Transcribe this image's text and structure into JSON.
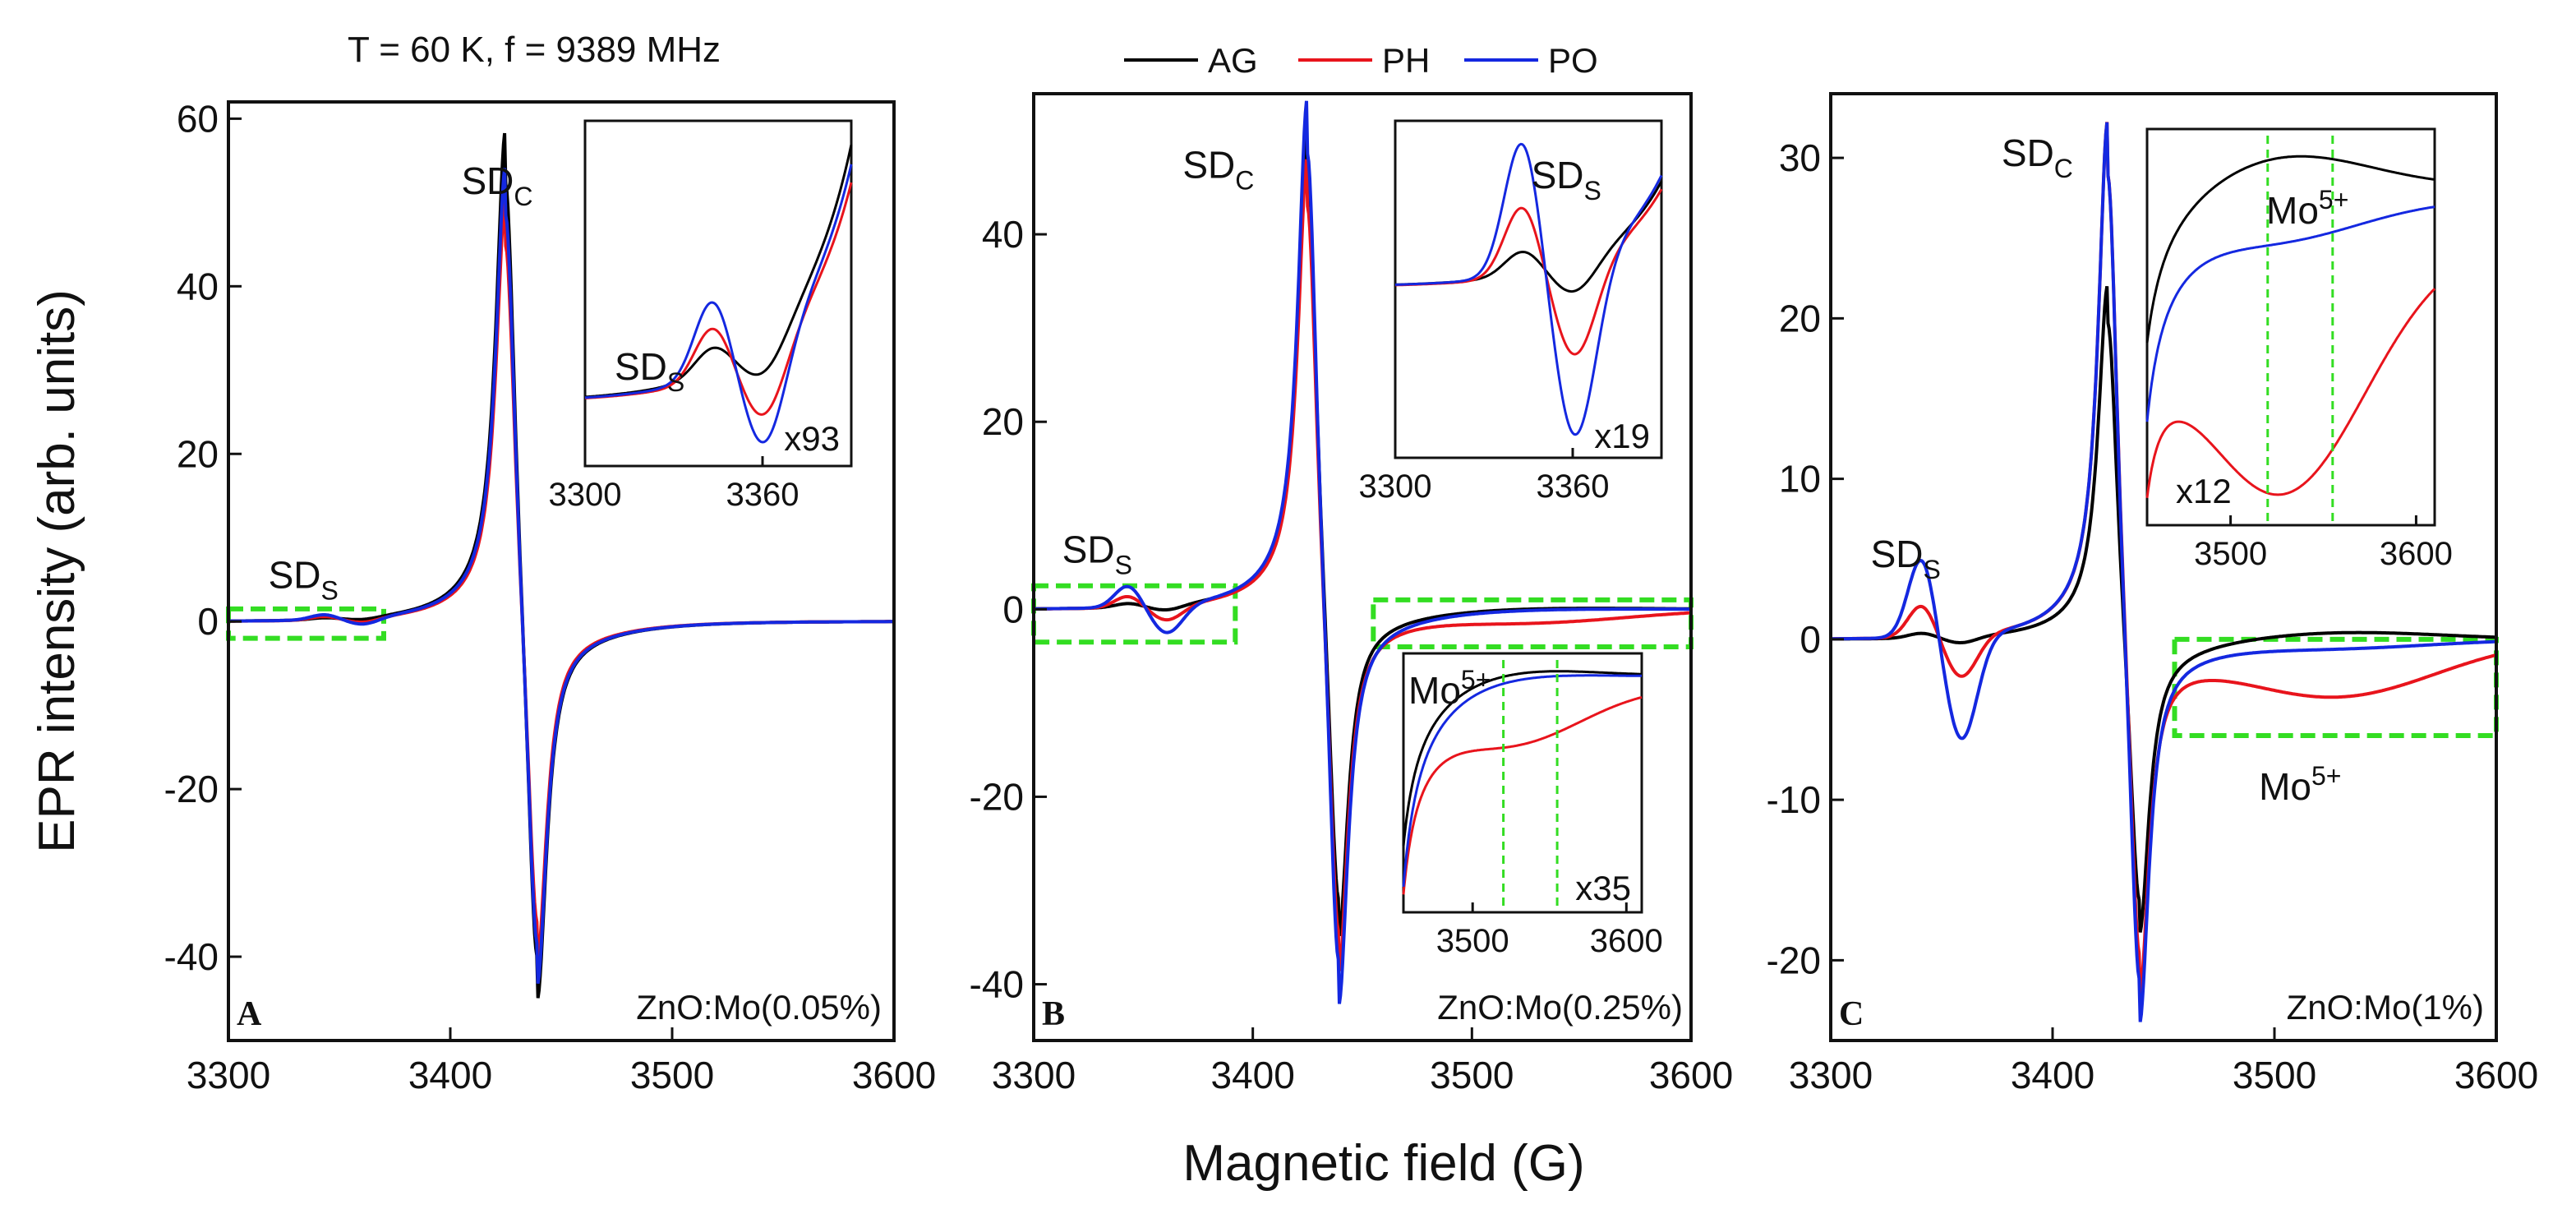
{
  "header": {
    "title": "T = 60 K, f = 9389 MHz"
  },
  "legend": {
    "items": [
      {
        "name": "AG",
        "color": "#000000"
      },
      {
        "name": "PH",
        "color": "#e8141c"
      },
      {
        "name": "PO",
        "color": "#1428e0"
      }
    ]
  },
  "axes": {
    "ylabel": "EPR intensity (arb. units)",
    "xlabel": "Magnetic field (G)"
  },
  "colors": {
    "AG": "#000000",
    "PH": "#e8141c",
    "PO": "#1428e0",
    "highlight": "#33dd22"
  },
  "chart_data": [
    {
      "type": "line",
      "panel": "A",
      "sample": "ZnO:Mo(0.05%)",
      "xlabel": "Magnetic field (G)",
      "ylabel": "EPR intensity (arb. units)",
      "xlim": [
        3300,
        3600
      ],
      "ylim": [
        -50,
        62
      ],
      "xticks": [
        3300,
        3400,
        3500,
        3600
      ],
      "yticks": [
        -40,
        -20,
        0,
        20,
        40,
        60
      ],
      "signal": {
        "center": 3432,
        "hw": 7,
        "SDs_at": 3352
      },
      "series": [
        {
          "name": "AG",
          "pos": 58,
          "neg": -47,
          "sds": 0.2,
          "mo": 0
        },
        {
          "name": "PH",
          "pos": 50,
          "neg": -42,
          "sds": 0.4,
          "mo": 0
        },
        {
          "name": "PO",
          "pos": 54,
          "neg": -45,
          "sds": 0.6,
          "mo": 0
        }
      ],
      "annotations": [
        {
          "text": "SD",
          "sub": "C",
          "x": 3405,
          "y": 51
        },
        {
          "text": "SD",
          "sub": "S",
          "x": 3318,
          "y": 4
        }
      ],
      "highlight_boxes": [
        {
          "x": [
            3300,
            3370
          ],
          "y": [
            -2,
            1.5
          ]
        }
      ],
      "inset": {
        "xlim": [
          3300,
          3390
        ],
        "xticks": [
          3300,
          3360
        ],
        "scale_label": "x93",
        "labels": [
          {
            "text": "SD",
            "sub": "S",
            "x": 3310,
            "y": 0.25
          }
        ]
      }
    },
    {
      "type": "line",
      "panel": "B",
      "sample": "ZnO:Mo(0.25%)",
      "xlabel": "Magnetic field (G)",
      "ylabel": "EPR intensity (arb. units)",
      "xlim": [
        3300,
        3600
      ],
      "ylim": [
        -46,
        55
      ],
      "xticks": [
        3300,
        3400,
        3500,
        3600
      ],
      "yticks": [
        -40,
        -20,
        0,
        20,
        40
      ],
      "signal": {
        "center": 3432,
        "hw": 7,
        "SDs_at": 3352
      },
      "series": [
        {
          "name": "AG",
          "pos": 50,
          "neg": -37,
          "sds": 0.4,
          "mo": 0.2
        },
        {
          "name": "PH",
          "pos": 48,
          "neg": -40,
          "sds": 1.2,
          "mo": -1.3
        },
        {
          "name": "PO",
          "pos": 54,
          "neg": -44,
          "sds": 2.3,
          "mo": 0.1
        }
      ],
      "annotations": [
        {
          "text": "SD",
          "sub": "C",
          "x": 3368,
          "y": 46
        },
        {
          "text": "SD",
          "sub": "S",
          "x": 3313,
          "y": 5
        }
      ],
      "highlight_boxes": [
        {
          "x": [
            3300,
            3392
          ],
          "y": [
            -3.5,
            2.5
          ]
        },
        {
          "x": [
            3455,
            3600
          ],
          "y": [
            -4,
            1
          ]
        }
      ],
      "inset": {
        "xlim": [
          3300,
          3390
        ],
        "xticks": [
          3300,
          3360
        ],
        "scale_label": "x19",
        "labels": [
          {
            "text": "SD",
            "sub": "S",
            "x": 3346,
            "y": 0.8
          }
        ]
      },
      "inset2": {
        "xlim": [
          3455,
          3610
        ],
        "xticks": [
          3500,
          3600
        ],
        "scale_label": "x35",
        "label": {
          "text": "Mo",
          "sup": "5+"
        },
        "dashed_lines": [
          3520,
          3555
        ]
      }
    },
    {
      "type": "line",
      "panel": "C",
      "sample": "ZnO:Mo(1%)",
      "xlabel": "Magnetic field (G)",
      "ylabel": "EPR intensity (arb. units)",
      "xlim": [
        3300,
        3600
      ],
      "ylim": [
        -25,
        34
      ],
      "xticks": [
        3300,
        3400,
        3500,
        3600
      ],
      "yticks": [
        -20,
        -10,
        0,
        10,
        20,
        30
      ],
      "signal": {
        "center": 3432,
        "hw": 7,
        "SDs_at": 3350
      },
      "series": [
        {
          "name": "AG",
          "pos": 22,
          "neg": -19,
          "sds": 0.3,
          "mo": 0.5
        },
        {
          "name": "PH",
          "pos": 32,
          "neg": -23,
          "sds": 2,
          "mo": -3.5
        },
        {
          "name": "PO",
          "pos": 32,
          "neg": -25,
          "sds": 5,
          "mo": -0.5
        }
      ],
      "annotations": [
        {
          "text": "SD",
          "sub": "C",
          "x": 3377,
          "y": 29.5
        },
        {
          "text": "SD",
          "sub": "S",
          "x": 3318,
          "y": 4.5
        },
        {
          "text": "Mo",
          "sup": "5+",
          "x": 3493,
          "y": -10
        }
      ],
      "highlight_boxes": [
        {
          "x": [
            3455,
            3600
          ],
          "y": [
            -6,
            0
          ]
        }
      ],
      "inset": {
        "xlim": [
          3455,
          3610
        ],
        "xticks": [
          3500,
          3600
        ],
        "scale_label": "x12",
        "label": {
          "text": "Mo",
          "sup": "5+"
        },
        "dashed_lines": [
          3520,
          3555
        ]
      }
    }
  ]
}
